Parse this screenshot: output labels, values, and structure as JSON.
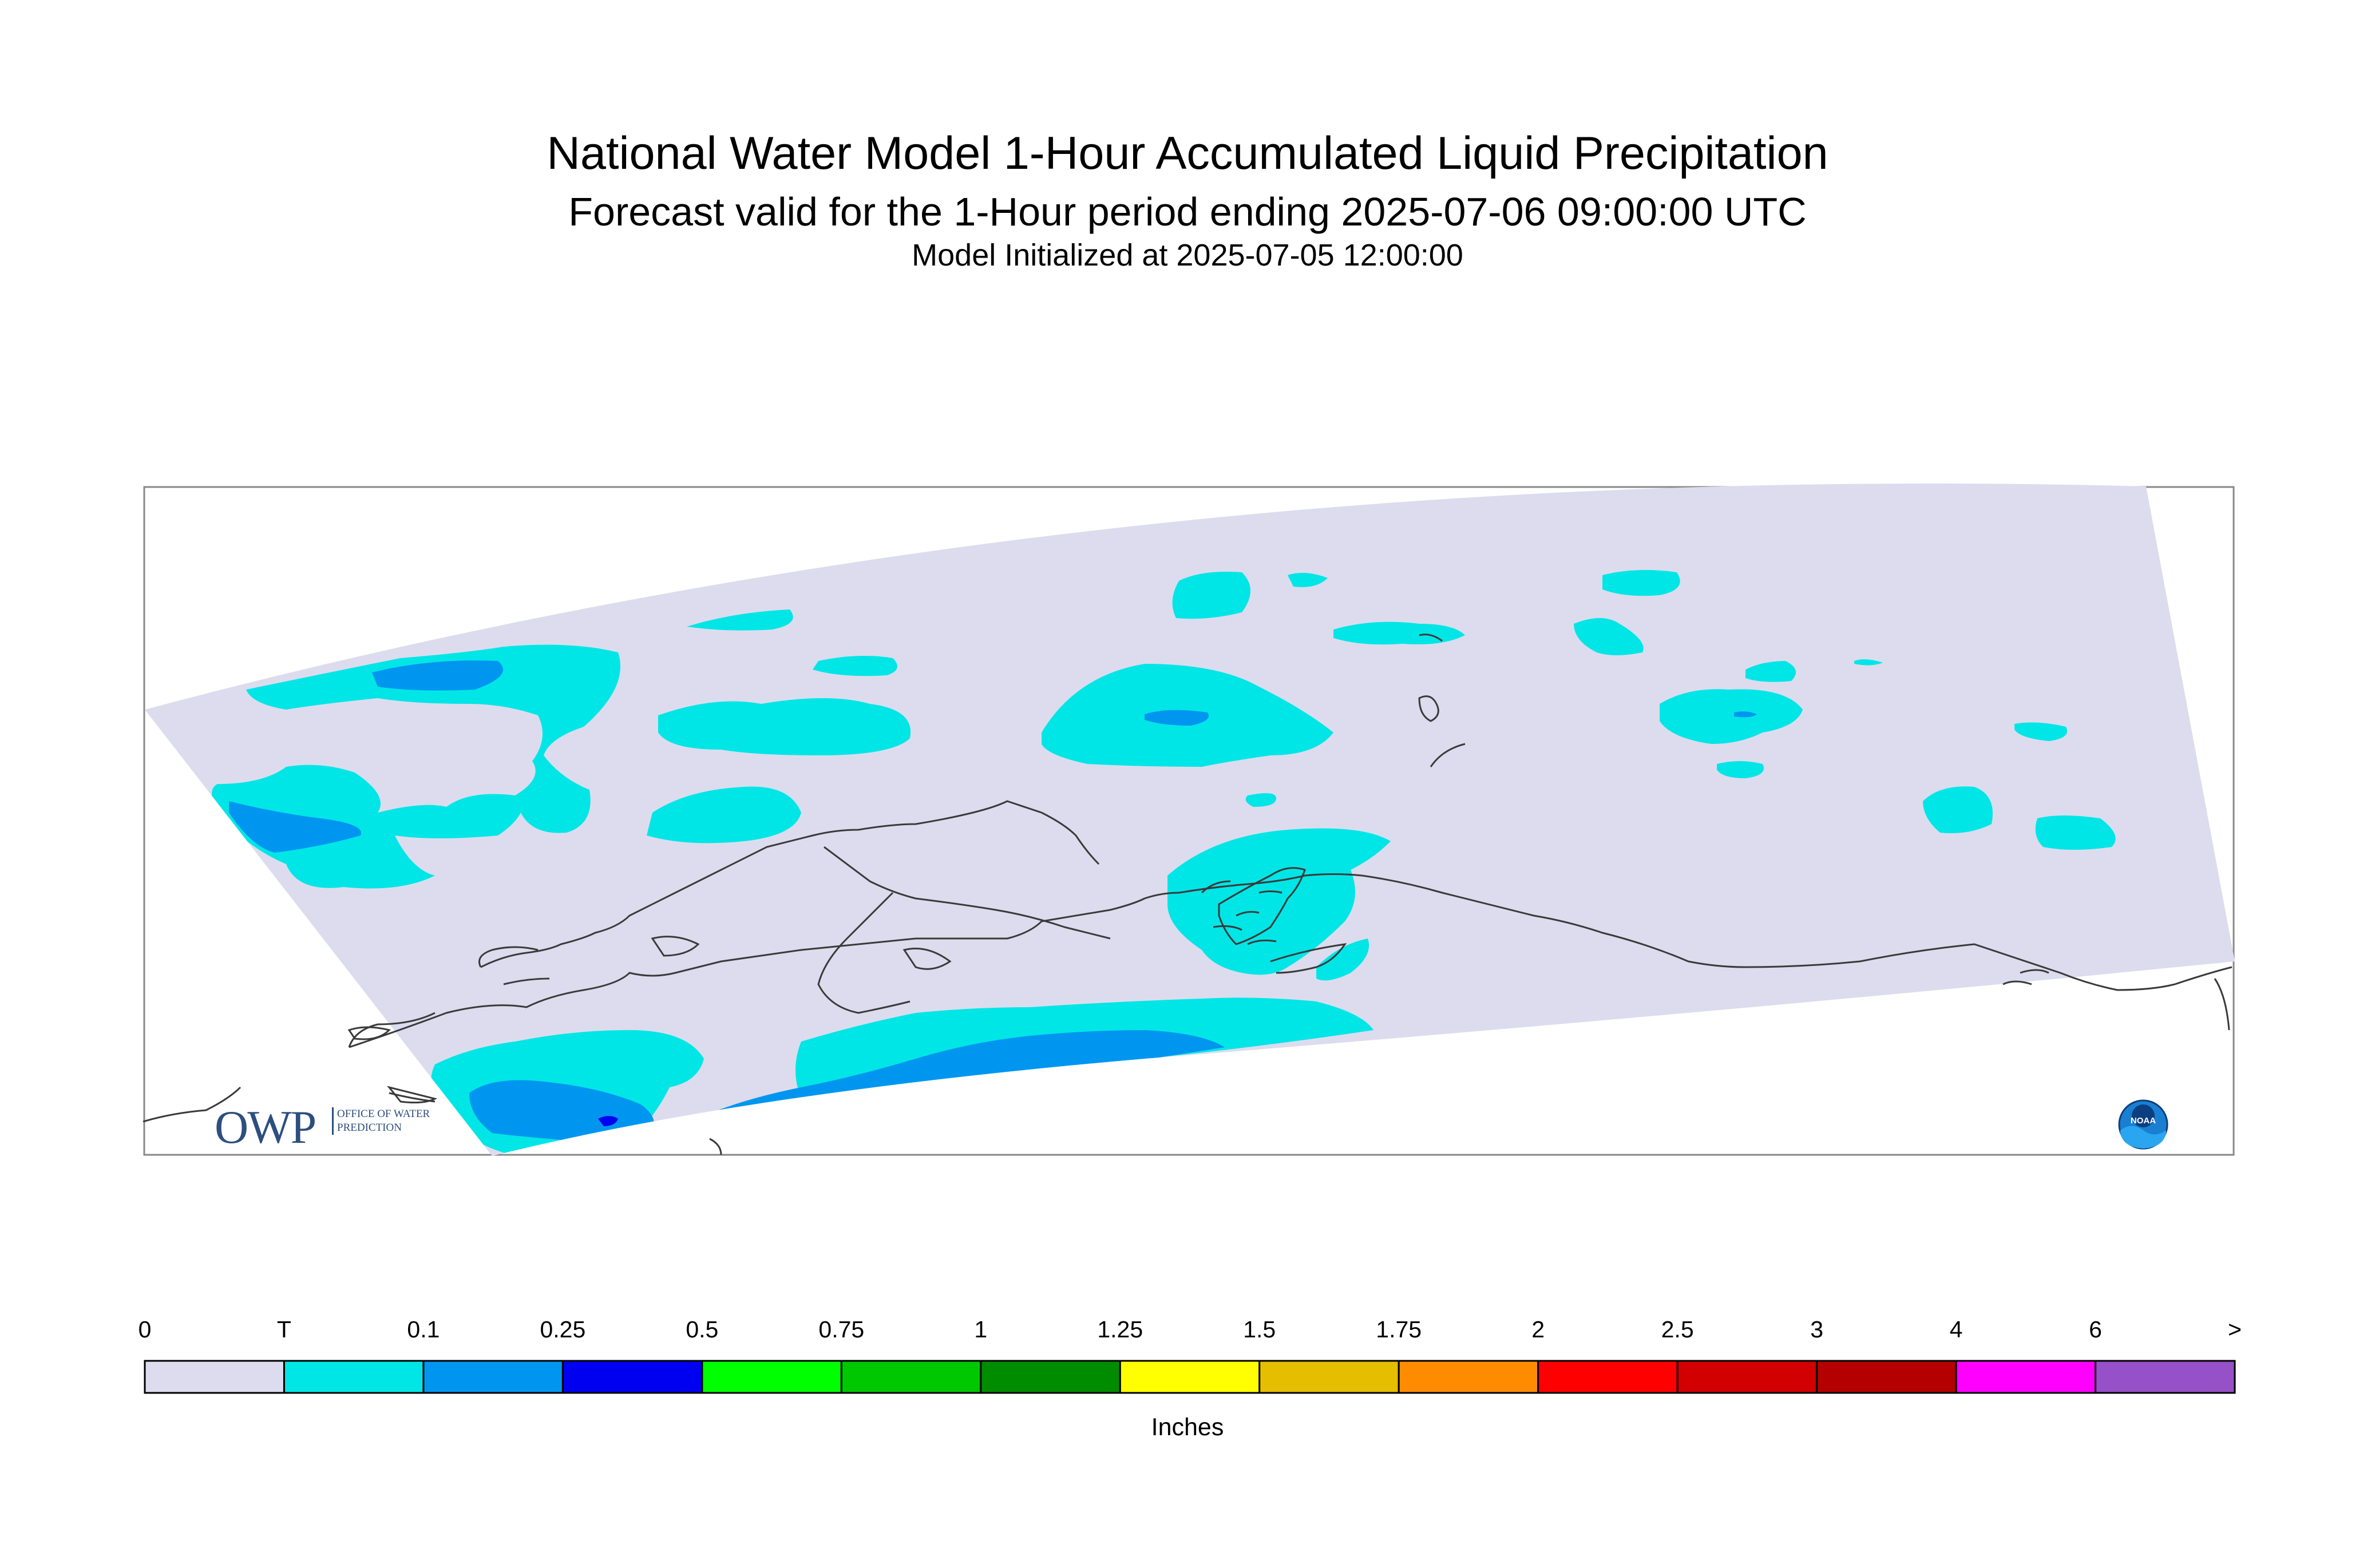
{
  "title": "National Water Model 1-Hour Accumulated Liquid Precipitation",
  "subtitle": "Forecast valid for the 1-Hour period ending 2025-07-06 09:00:00 UTC",
  "init_line": "Model Initialized at 2025-07-05 12:00:00",
  "legend": {
    "labels": [
      "0",
      "T",
      "0.1",
      "0.25",
      "0.5",
      "0.75",
      "1",
      "1.25",
      "1.5",
      "1.75",
      "2",
      "2.5",
      "3",
      "4",
      "6",
      ">"
    ],
    "colors": [
      "#dcdcee",
      "#00e6e6",
      "#0096f0",
      "#0000f0",
      "#00ff00",
      "#00c800",
      "#008c00",
      "#ffff00",
      "#e6be00",
      "#ff8c00",
      "#ff0000",
      "#d20000",
      "#b40000",
      "#ff00ff",
      "#9650c8"
    ],
    "units": "Inches"
  },
  "logos": {
    "owp_letters": "OWP",
    "owp_text": "Office of Water Prediction",
    "noaa_text": "NOAA"
  }
}
